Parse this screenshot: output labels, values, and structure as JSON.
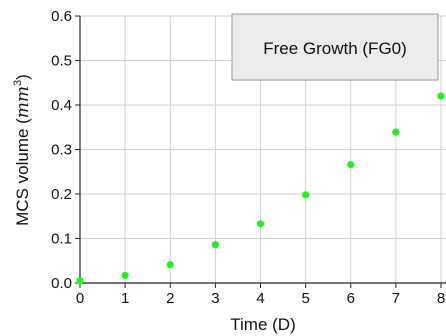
{
  "chart_data": {
    "type": "scatter",
    "title": "",
    "xlabel": "Time (D)",
    "ylabel_text": "MCS volume (",
    "ylabel_unit_base": "mm",
    "ylabel_unit_exp": "3",
    "ylabel_close": ")",
    "xlim": [
      0,
      8
    ],
    "ylim": [
      0,
      0.6
    ],
    "xticks": [
      "0",
      "1",
      "2",
      "3",
      "4",
      "5",
      "6",
      "7",
      "8"
    ],
    "yticks": [
      "0.0",
      "0.1",
      "0.2",
      "0.3",
      "0.4",
      "0.5",
      "0.6"
    ],
    "grid": true,
    "legend_position": "top-right",
    "series": [
      {
        "name": "Free Growth (FG0)",
        "color": "#22ee22",
        "x": [
          0,
          1,
          2,
          3,
          4,
          5,
          6,
          7,
          8
        ],
        "y": [
          0.005,
          0.017,
          0.041,
          0.086,
          0.133,
          0.198,
          0.266,
          0.339,
          0.42
        ]
      }
    ]
  }
}
